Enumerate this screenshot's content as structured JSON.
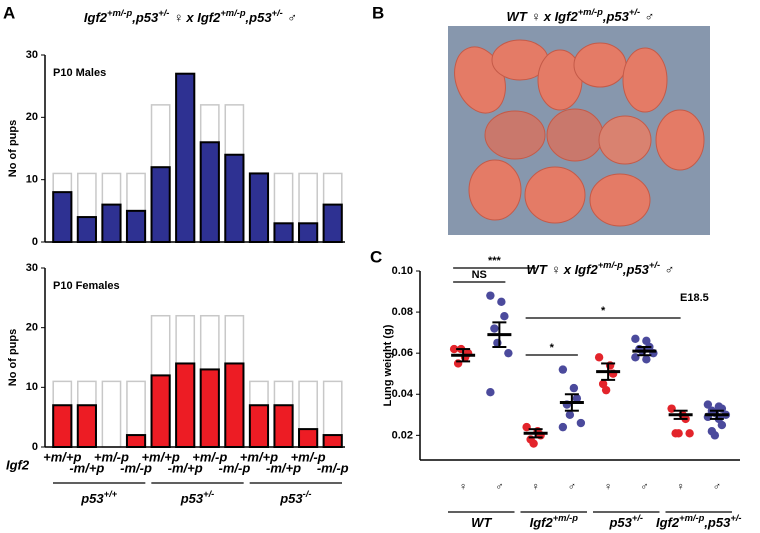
{
  "panels": [
    {
      "label": "A",
      "title": [
        {
          "text": "Igf2"
        },
        {
          "sup": "+m/-p"
        },
        {
          "text": ",p53"
        },
        {
          "sup": "+/-"
        },
        {
          "text": " ♀ x Igf2"
        },
        {
          "sup": "+m/-p"
        },
        {
          "text": ",p53"
        },
        {
          "sup": "+/-"
        },
        {
          "text": " ♂"
        }
      ]
    },
    {
      "label": "B",
      "title": [
        {
          "text": "WT ♀ x Igf2"
        },
        {
          "sup": "+m/-p"
        },
        {
          "text": ",p53"
        },
        {
          "sup": "+/-"
        },
        {
          "text": " ♂"
        }
      ]
    },
    {
      "label": "C",
      "title": [
        {
          "text": "WT ♀ x Igf2"
        },
        {
          "sup": "+m/-p"
        },
        {
          "text": ",p53"
        },
        {
          "sup": "+/-"
        },
        {
          "text": " ♂"
        }
      ]
    }
  ],
  "chart_data": [
    {
      "type": "bar",
      "title": "P10 Males",
      "y_label": "No of pups",
      "categories": [
        null,
        null,
        null,
        null,
        null,
        null,
        null,
        null,
        null,
        null,
        null,
        null
      ],
      "ylim": [
        0,
        30
      ],
      "yticks": [
        0,
        10,
        20,
        30
      ],
      "series": [
        {
          "color": "#ffffff",
          "edge_color": "#c8c8c8",
          "values": [
            11,
            11,
            11,
            11,
            22,
            22,
            22,
            22,
            11,
            11,
            11,
            11
          ]
        },
        {
          "color": "#2e3192",
          "edge_color": "#000000",
          "values": [
            8,
            4,
            6,
            5,
            12,
            27,
            16,
            14,
            11,
            3,
            3,
            6
          ]
        }
      ]
    },
    {
      "type": "bar",
      "title": "P10 Females",
      "y_label": "No of pups",
      "x_title": "Igf2",
      "categories": [
        "+m/+p",
        "-m/+p",
        "+m/-p",
        "-m/-p",
        "+m/+p",
        "-m/+p",
        "+m/-p",
        "-m/-p",
        "+m/+p",
        "-m/+p",
        "+m/-p",
        "-m/-p"
      ],
      "groups": [
        {
          "span": 4,
          "parts": [
            {
              "text": "p53"
            },
            {
              "sup": "+/+"
            }
          ]
        },
        {
          "span": 4,
          "parts": [
            {
              "text": "p53"
            },
            {
              "sup": "+/-"
            }
          ]
        },
        {
          "span": 4,
          "parts": [
            {
              "text": "p53"
            },
            {
              "sup": "-/-"
            }
          ]
        }
      ],
      "ylim": [
        0,
        30
      ],
      "yticks": [
        0,
        10,
        20,
        30
      ],
      "series": [
        {
          "color": "#ffffff",
          "edge_color": "#c8c8c8",
          "values": [
            11,
            11,
            11,
            11,
            22,
            22,
            22,
            22,
            11,
            11,
            11,
            11
          ]
        },
        {
          "color": "#ed1c24",
          "edge_color": "#000000",
          "values": [
            7,
            7,
            0,
            2,
            12,
            14,
            13,
            14,
            7,
            7,
            3,
            2
          ]
        }
      ]
    },
    {
      "type": "dotplot",
      "y_label": "Lung weight (g)",
      "annotation": "E18.5",
      "categories": [
        "♀",
        "♂",
        "♀",
        "♂",
        "♀",
        "♂",
        "♀",
        "♂"
      ],
      "groups": [
        {
          "span": 2,
          "parts": [
            {
              "text": "WT"
            }
          ]
        },
        {
          "span": 2,
          "parts": [
            {
              "text": "Igf2"
            },
            {
              "sup": "+m/-p"
            }
          ]
        },
        {
          "span": 2,
          "parts": [
            {
              "text": "p53"
            },
            {
              "sup": "+/-"
            }
          ]
        },
        {
          "span": 2,
          "parts": [
            {
              "text": "Igf2"
            },
            {
              "sup": "+m/-p"
            },
            {
              "text": ",p53"
            },
            {
              "sup": "+/-"
            }
          ]
        }
      ],
      "ylim": [
        0.008,
        0.1
      ],
      "yticks": [
        0.02,
        0.04,
        0.06,
        0.08,
        {
          "value": 0.1,
          "label": "0.10"
        }
      ],
      "series": [
        {
          "color": "#e3242b",
          "points": [
            0.062,
            0.058,
            0.06,
            0.055,
            0.062
          ],
          "mean": 0.059,
          "sem": 0.003
        },
        {
          "color": "#4b4a9c",
          "points": [
            0.088,
            0.085,
            0.078,
            0.072,
            0.065,
            0.06,
            0.041
          ],
          "mean": 0.069,
          "sem": 0.006
        },
        {
          "color": "#e3242b",
          "points": [
            0.024,
            0.022,
            0.02,
            0.018,
            0.016
          ],
          "mean": 0.021,
          "sem": 0.002
        },
        {
          "color": "#4b4a9c",
          "points": [
            0.052,
            0.043,
            0.038,
            0.035,
            0.03,
            0.026,
            0.024
          ],
          "mean": 0.036,
          "sem": 0.004
        },
        {
          "color": "#e3242b",
          "points": [
            0.058,
            0.054,
            0.05,
            0.045,
            0.042
          ],
          "mean": 0.051,
          "sem": 0.004
        },
        {
          "color": "#4b4a9c",
          "points": [
            0.067,
            0.066,
            0.063,
            0.062,
            0.061,
            0.06,
            0.058,
            0.057
          ],
          "mean": 0.061,
          "sem": 0.002
        },
        {
          "color": "#e3242b",
          "points": [
            0.033,
            0.03,
            0.028,
            0.021,
            0.021,
            0.021
          ],
          "mean": 0.03,
          "sem": 0.002
        },
        {
          "color": "#4b4a9c",
          "points": [
            0.035,
            0.034,
            0.033,
            0.032,
            0.031,
            0.03,
            0.029,
            0.028,
            0.025,
            0.022,
            0.02
          ],
          "mean": 0.03,
          "sem": 0.002
        }
      ],
      "brackets": [
        {
          "text": "***",
          "from": 0,
          "to": 2
        },
        {
          "text": "NS",
          "from": 0,
          "to": 1
        },
        {
          "text": "*",
          "from": 2,
          "to": 6
        },
        {
          "text": "*",
          "from": 2,
          "to": 3
        }
      ]
    }
  ]
}
